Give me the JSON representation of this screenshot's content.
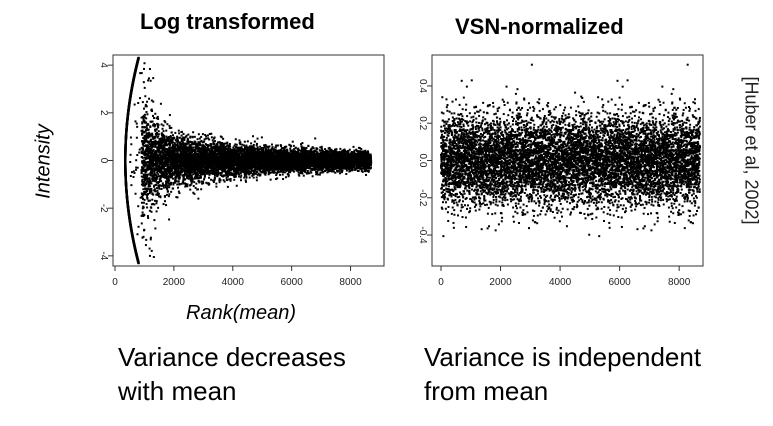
{
  "titles": {
    "left": "Log transformed",
    "right": "VSN-normalized"
  },
  "ylabel": "Intensity",
  "xlabel": "Rank(mean)",
  "citation": "[Huber et al, 2002]",
  "captions": {
    "left_line1": "Variance decreases",
    "left_line2": "with mean",
    "right_line1": "Variance is independent",
    "right_line2": "from mean"
  },
  "chart_data": [
    {
      "type": "scatter",
      "title": "Log transformed",
      "xlabel": "Rank(mean)",
      "ylabel": "Intensity",
      "xlim": [
        0,
        9000
      ],
      "ylim": [
        -4.3,
        4.3
      ],
      "xticks": [
        0,
        2000,
        4000,
        6000,
        8000
      ],
      "yticks": [
        -4,
        -2,
        0,
        2,
        4
      ],
      "n_points": 8700,
      "spread_profile": {
        "x": [
          900,
          1000,
          1500,
          2000,
          3000,
          4000,
          5000,
          6000,
          7000,
          8000,
          8700
        ],
        "sd": [
          1.3,
          1.1,
          0.75,
          0.55,
          0.4,
          0.32,
          0.27,
          0.24,
          0.21,
          0.19,
          0.18
        ]
      },
      "low_rank_curve": {
        "x_at_center": 350,
        "y_at_ends": [
          -4.3,
          4.3
        ],
        "x_at_ends": 800
      }
    },
    {
      "type": "scatter",
      "title": "VSN-normalized",
      "xlim": [
        0,
        8700
      ],
      "ylim": [
        -0.55,
        0.55
      ],
      "xticks": [
        0,
        2000,
        4000,
        6000,
        8000
      ],
      "yticks": [
        -0.4,
        -0.2,
        0.0,
        0.2,
        0.4
      ],
      "ytick_labels": [
        "-0.4",
        "-0.2",
        "0.0",
        "0.2",
        "0.4"
      ],
      "n_points": 8700,
      "spread_profile": {
        "x": [
          0,
          8700
        ],
        "sd": [
          0.12,
          0.12
        ]
      }
    }
  ],
  "colors": {
    "points": "#000000",
    "axis": "#333333",
    "background": "#ffffff"
  }
}
